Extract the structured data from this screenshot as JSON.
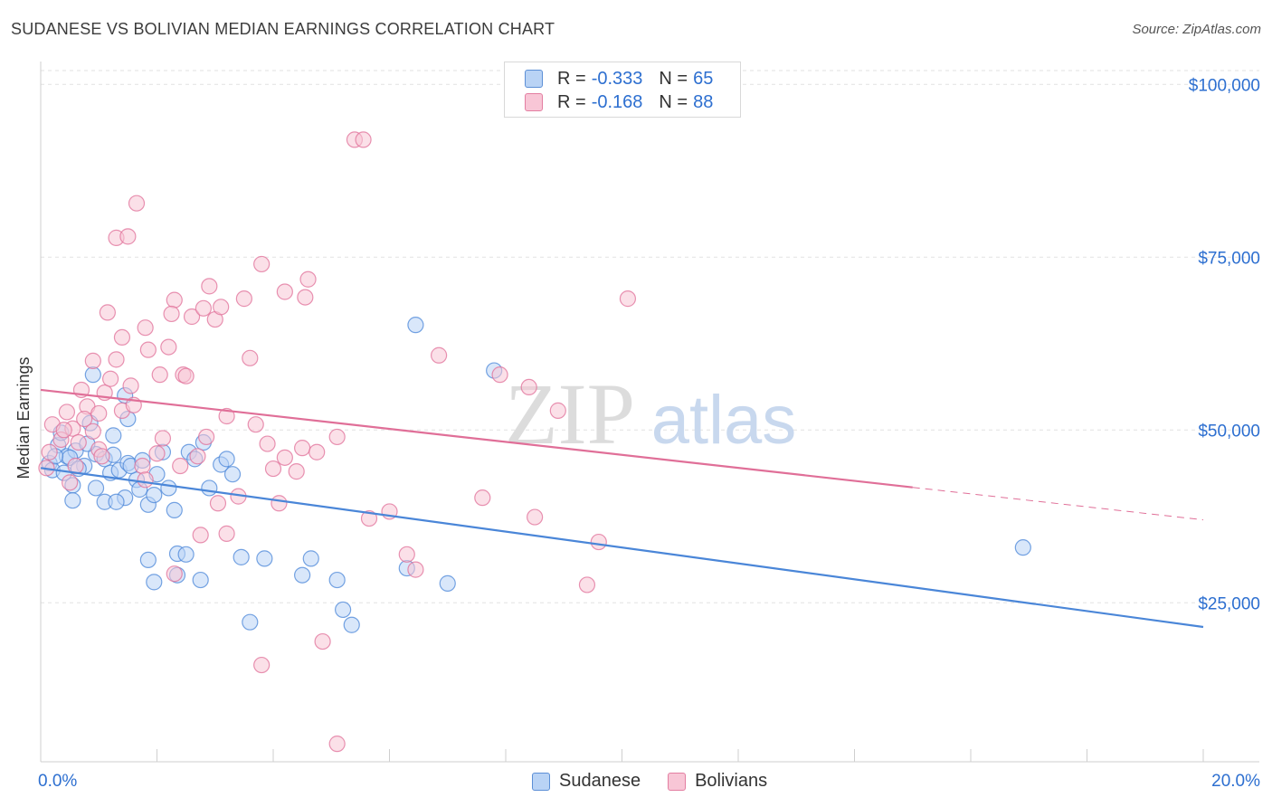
{
  "title": "SUDANESE VS BOLIVIAN MEDIAN EARNINGS CORRELATION CHART",
  "source": "Source: ZipAtlas.com",
  "watermark": {
    "zip": "ZIP",
    "atlas": "atlas"
  },
  "legend": {
    "r_label": "R =",
    "n_label": "N =",
    "rows": [
      {
        "r": "-0.333",
        "n": "65",
        "fill": "#b9d3f5",
        "stroke": "#5c8fd6"
      },
      {
        "r": "-0.168",
        "n": "88",
        "fill": "#f8c6d6",
        "stroke": "#e37ea1"
      }
    ]
  },
  "bottom_legend": [
    {
      "label": "Sudanese",
      "fill": "#b9d3f5",
      "stroke": "#5c8fd6"
    },
    {
      "label": "Bolivians",
      "fill": "#f8c6d6",
      "stroke": "#e37ea1"
    }
  ],
  "chart_data": {
    "type": "scatter",
    "title": "SUDANESE VS BOLIVIAN MEDIAN EARNINGS CORRELATION CHART",
    "xlabel": "",
    "ylabel": "Median Earnings",
    "xlim": [
      0,
      20
    ],
    "ylim": [
      2000,
      102000
    ],
    "x_tick_labels": [
      "0.0%",
      "20.0%"
    ],
    "y_ticks": [
      25000,
      50000,
      75000,
      100000
    ],
    "y_tick_labels": [
      "$25,000",
      "$50,000",
      "$75,000",
      "$100,000"
    ],
    "grid": true,
    "series": [
      {
        "name": "Sudanese",
        "color": "#4a86d8",
        "fill": "#b9d3f5",
        "trend": {
          "x0": 0,
          "y0": 44500,
          "x1": 20,
          "y1": 21500,
          "dash_from": null
        },
        "points": [
          [
            0.15,
            45200
          ],
          [
            0.3,
            47800
          ],
          [
            0.45,
            46200
          ],
          [
            0.55,
            42000
          ],
          [
            0.6,
            47000
          ],
          [
            0.75,
            44800
          ],
          [
            0.85,
            51000
          ],
          [
            0.95,
            46500
          ],
          [
            1.1,
            45800
          ],
          [
            1.2,
            43800
          ],
          [
            1.25,
            49200
          ],
          [
            1.35,
            44200
          ],
          [
            1.5,
            45200
          ],
          [
            1.65,
            42800
          ],
          [
            1.45,
            40200
          ],
          [
            0.2,
            44200
          ],
          [
            0.35,
            49600
          ],
          [
            0.5,
            46000
          ],
          [
            0.9,
            58000
          ],
          [
            1.45,
            55000
          ],
          [
            1.5,
            51600
          ],
          [
            1.55,
            44800
          ],
          [
            1.7,
            41400
          ],
          [
            1.85,
            39200
          ],
          [
            1.95,
            40600
          ],
          [
            2.0,
            43600
          ],
          [
            2.1,
            46800
          ],
          [
            2.3,
            38400
          ],
          [
            2.2,
            41600
          ],
          [
            0.55,
            39800
          ],
          [
            0.95,
            41600
          ],
          [
            1.1,
            39600
          ],
          [
            1.3,
            39600
          ],
          [
            2.55,
            46800
          ],
          [
            2.65,
            45800
          ],
          [
            2.8,
            48200
          ],
          [
            2.9,
            41600
          ],
          [
            3.1,
            45000
          ],
          [
            3.2,
            45800
          ],
          [
            3.3,
            43600
          ],
          [
            2.35,
            32100
          ],
          [
            2.5,
            32000
          ],
          [
            2.35,
            29000
          ],
          [
            1.85,
            31200
          ],
          [
            1.95,
            28000
          ],
          [
            2.75,
            28300
          ],
          [
            3.45,
            31600
          ],
          [
            3.85,
            31400
          ],
          [
            4.5,
            29000
          ],
          [
            4.65,
            31400
          ],
          [
            5.1,
            28300
          ],
          [
            5.2,
            24000
          ],
          [
            5.35,
            21800
          ],
          [
            3.6,
            22200
          ],
          [
            6.3,
            30000
          ],
          [
            7.0,
            27800
          ],
          [
            6.45,
            65200
          ],
          [
            7.8,
            58600
          ],
          [
            16.9,
            33000
          ],
          [
            0.25,
            46200
          ],
          [
            0.4,
            43800
          ],
          [
            0.65,
            44400
          ],
          [
            0.8,
            48000
          ],
          [
            1.25,
            46400
          ],
          [
            1.75,
            45600
          ]
        ]
      },
      {
        "name": "Bolivians",
        "color": "#e06f98",
        "fill": "#f8c6d6",
        "trend": {
          "x0": 0,
          "y0": 55800,
          "x1": 20,
          "y1": 37000,
          "dash_from": 15
        },
        "points": [
          [
            0.1,
            44500
          ],
          [
            0.2,
            50800
          ],
          [
            0.35,
            48600
          ],
          [
            0.45,
            52600
          ],
          [
            0.55,
            50200
          ],
          [
            0.65,
            48200
          ],
          [
            0.8,
            53400
          ],
          [
            0.9,
            49800
          ],
          [
            1.0,
            52400
          ],
          [
            1.1,
            55400
          ],
          [
            1.2,
            57400
          ],
          [
            1.3,
            60200
          ],
          [
            1.4,
            63400
          ],
          [
            0.9,
            60000
          ],
          [
            1.15,
            67000
          ],
          [
            1.3,
            77800
          ],
          [
            1.5,
            78000
          ],
          [
            1.65,
            82800
          ],
          [
            1.8,
            64800
          ],
          [
            1.85,
            61600
          ],
          [
            2.05,
            58000
          ],
          [
            2.2,
            62000
          ],
          [
            2.3,
            68800
          ],
          [
            2.25,
            66800
          ],
          [
            2.45,
            58000
          ],
          [
            2.6,
            66400
          ],
          [
            2.8,
            67600
          ],
          [
            2.9,
            70800
          ],
          [
            3.0,
            66000
          ],
          [
            3.1,
            67800
          ],
          [
            3.5,
            69000
          ],
          [
            3.8,
            74000
          ],
          [
            4.2,
            70000
          ],
          [
            4.6,
            71800
          ],
          [
            5.4,
            92000
          ],
          [
            5.55,
            92000
          ],
          [
            0.15,
            46800
          ],
          [
            0.4,
            50000
          ],
          [
            0.6,
            44800
          ],
          [
            0.7,
            55800
          ],
          [
            1.0,
            47200
          ],
          [
            1.4,
            52800
          ],
          [
            1.6,
            53600
          ],
          [
            1.75,
            44800
          ],
          [
            2.0,
            46600
          ],
          [
            2.4,
            44800
          ],
          [
            2.7,
            46200
          ],
          [
            2.85,
            49000
          ],
          [
            3.05,
            39400
          ],
          [
            3.2,
            52000
          ],
          [
            3.4,
            40400
          ],
          [
            3.7,
            50800
          ],
          [
            3.9,
            48000
          ],
          [
            4.0,
            44400
          ],
          [
            4.1,
            39400
          ],
          [
            4.2,
            46000
          ],
          [
            4.4,
            44000
          ],
          [
            4.5,
            47400
          ],
          [
            4.75,
            46800
          ],
          [
            5.1,
            49000
          ],
          [
            5.65,
            37200
          ],
          [
            6.0,
            38200
          ],
          [
            6.3,
            32000
          ],
          [
            6.45,
            29800
          ],
          [
            6.85,
            60800
          ],
          [
            7.6,
            40200
          ],
          [
            7.9,
            58000
          ],
          [
            8.4,
            56200
          ],
          [
            8.5,
            37400
          ],
          [
            8.9,
            52800
          ],
          [
            9.4,
            27600
          ],
          [
            9.6,
            33800
          ],
          [
            10.1,
            69000
          ],
          [
            2.3,
            29200
          ],
          [
            2.75,
            34800
          ],
          [
            3.2,
            35000
          ],
          [
            3.8,
            16000
          ],
          [
            4.85,
            19400
          ],
          [
            5.1,
            4600
          ],
          [
            1.8,
            42800
          ],
          [
            2.1,
            48800
          ],
          [
            0.5,
            42400
          ],
          [
            1.55,
            56400
          ],
          [
            2.5,
            57800
          ],
          [
            3.6,
            60400
          ],
          [
            4.55,
            69200
          ],
          [
            0.75,
            51600
          ],
          [
            1.05,
            46200
          ]
        ]
      }
    ]
  }
}
